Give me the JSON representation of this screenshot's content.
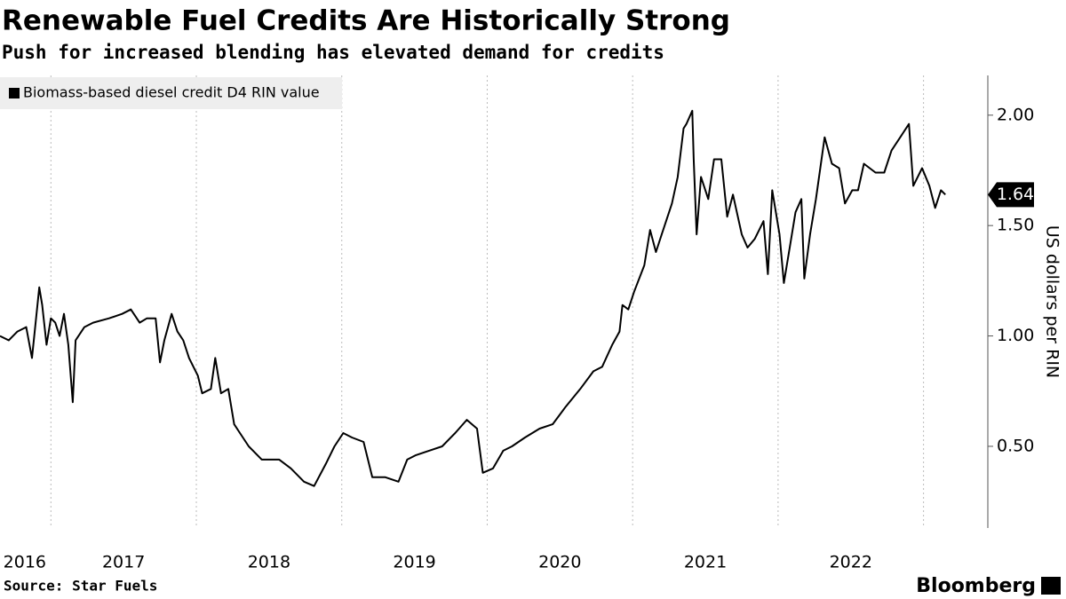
{
  "chart_data": {
    "type": "line",
    "title": "Renewable Fuel Credits Are Historically Strong",
    "subtitle": "Push for increased blending has elevated demand for credits",
    "y_label": "US dollars per RIN",
    "source": "Source: Star Fuels",
    "brand": "Bloomberg",
    "legend_position": "top-left",
    "series": [
      {
        "name": "Biomass-based diesel credit D4 RIN value",
        "color": "#000000",
        "x": [
          2016.65,
          2016.71,
          2016.77,
          2016.83,
          2016.87,
          2016.92,
          2016.94,
          2016.97,
          2017.0,
          2017.03,
          2017.06,
          2017.09,
          2017.12,
          2017.15,
          2017.17,
          2017.23,
          2017.29,
          2017.4,
          2017.49,
          2017.55,
          2017.61,
          2017.66,
          2017.72,
          2017.75,
          2017.78,
          2017.83,
          2017.87,
          2017.91,
          2017.95,
          2018.01,
          2018.04,
          2018.1,
          2018.13,
          2018.17,
          2018.22,
          2018.26,
          2018.3,
          2018.36,
          2018.45,
          2018.57,
          2018.65,
          2018.74,
          2018.81,
          2018.89,
          2018.95,
          2019.01,
          2019.07,
          2019.15,
          2019.21,
          2019.3,
          2019.39,
          2019.45,
          2019.51,
          2019.6,
          2019.69,
          2019.78,
          2019.86,
          2019.93,
          2019.97,
          2020.04,
          2020.11,
          2020.17,
          2020.26,
          2020.36,
          2020.45,
          2020.54,
          2020.64,
          2020.73,
          2020.79,
          2020.86,
          2020.91,
          2020.93,
          2020.97,
          2021.01,
          2021.08,
          2021.12,
          2021.16,
          2021.2,
          2021.27,
          2021.31,
          2021.35,
          2021.37,
          2021.41,
          2021.42,
          2021.44,
          2021.47,
          2021.52,
          2021.56,
          2021.61,
          2021.65,
          2021.69,
          2021.75,
          2021.79,
          2021.84,
          2021.9,
          2021.93,
          2021.96,
          2022.01,
          2022.04,
          2022.08,
          2022.12,
          2022.16,
          2022.18,
          2022.22,
          2022.26,
          2022.32,
          2022.37,
          2022.42,
          2022.46,
          2022.51,
          2022.55,
          2022.59,
          2022.67,
          2022.73,
          2022.78,
          2022.84,
          2022.9,
          2022.93,
          2022.99,
          2023.04,
          2023.08,
          2023.12,
          2023.15
        ],
        "values": [
          1.0,
          0.98,
          1.02,
          1.04,
          0.9,
          1.22,
          1.14,
          0.96,
          1.08,
          1.06,
          1.0,
          1.1,
          0.96,
          0.7,
          0.98,
          1.04,
          1.06,
          1.08,
          1.1,
          1.12,
          1.06,
          1.08,
          1.08,
          0.88,
          0.98,
          1.1,
          1.02,
          0.98,
          0.9,
          0.82,
          0.74,
          0.76,
          0.9,
          0.74,
          0.76,
          0.6,
          0.56,
          0.5,
          0.44,
          0.44,
          0.4,
          0.34,
          0.32,
          0.42,
          0.5,
          0.56,
          0.54,
          0.52,
          0.36,
          0.36,
          0.34,
          0.44,
          0.46,
          0.48,
          0.5,
          0.56,
          0.62,
          0.58,
          0.38,
          0.4,
          0.48,
          0.5,
          0.54,
          0.58,
          0.6,
          0.68,
          0.76,
          0.84,
          0.86,
          0.96,
          1.02,
          1.14,
          1.12,
          1.2,
          1.32,
          1.48,
          1.38,
          1.46,
          1.6,
          1.72,
          1.94,
          1.96,
          2.02,
          1.8,
          1.46,
          1.72,
          1.62,
          1.8,
          1.8,
          1.54,
          1.64,
          1.46,
          1.4,
          1.44,
          1.52,
          1.28,
          1.66,
          1.46,
          1.24,
          1.4,
          1.56,
          1.62,
          1.26,
          1.46,
          1.62,
          1.9,
          1.78,
          1.76,
          1.6,
          1.66,
          1.66,
          1.78,
          1.74,
          1.74,
          1.84,
          1.9,
          1.96,
          1.68,
          1.76,
          1.68,
          1.58,
          1.66,
          1.64
        ]
      }
    ],
    "xlim": [
      2016.65,
      2023.43
    ],
    "xticks": [
      {
        "value": 2016.82,
        "label": "2016"
      },
      {
        "value": 2017.5,
        "label": "2017"
      },
      {
        "value": 2018.5,
        "label": "2018"
      },
      {
        "value": 2019.5,
        "label": "2019"
      },
      {
        "value": 2020.5,
        "label": "2020"
      },
      {
        "value": 2021.5,
        "label": "2021"
      },
      {
        "value": 2022.5,
        "label": "2022"
      }
    ],
    "xgrid": [
      2017,
      2018,
      2019,
      2020,
      2021,
      2022,
      2023
    ],
    "ylim": [
      0.13,
      2.18
    ],
    "yticks": [
      {
        "value": 0.5,
        "label": "0.50"
      },
      {
        "value": 1,
        "label": "1.00"
      },
      {
        "value": 1.5,
        "label": "1.50"
      },
      {
        "value": 2,
        "label": "2.00"
      }
    ],
    "grid": true
  }
}
